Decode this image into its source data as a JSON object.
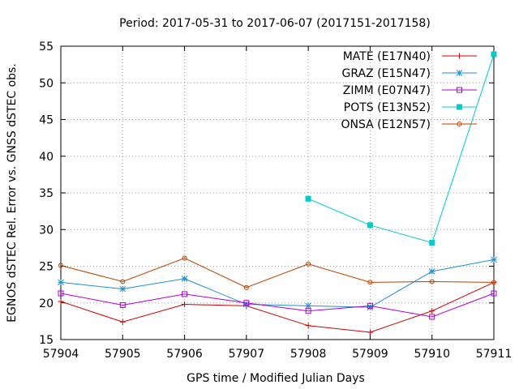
{
  "chart_data": {
    "type": "line",
    "title": "Period: 2017-05-31 to 2017-06-07 (2017151-2017158)",
    "xlabel": "GPS time / Modified Julian Days",
    "ylabel": "EGNOS dSTEC Rel. Error vs. GNSS dSTEC obs.",
    "xlim": [
      57904,
      57911
    ],
    "ylim": [
      15,
      55
    ],
    "xticks": [
      57904,
      57905,
      57906,
      57907,
      57908,
      57909,
      57910,
      57911
    ],
    "yticks": [
      15,
      20,
      25,
      30,
      35,
      40,
      45,
      50,
      55
    ],
    "grid": true,
    "legend_position": "top-right",
    "series": [
      {
        "name": "MATE (E17N40)",
        "color": "#cc0000",
        "marker": "plus",
        "x": [
          57904,
          57905,
          57906,
          57907,
          57908,
          57909,
          57910,
          57911
        ],
        "y": [
          20.2,
          17.4,
          19.8,
          19.6,
          16.9,
          16.0,
          18.9,
          22.8
        ]
      },
      {
        "name": "GRAZ (E15N47)",
        "color": "#1e8fd0",
        "marker": "star",
        "x": [
          57904,
          57905,
          57906,
          57907,
          57908,
          57909,
          57910,
          57911
        ],
        "y": [
          22.8,
          21.9,
          23.3,
          19.8,
          19.6,
          19.4,
          24.3,
          25.9
        ]
      },
      {
        "name": "ZIMM (E07N47)",
        "color": "#b000d0",
        "marker": "square-open",
        "x": [
          57904,
          57905,
          57906,
          57907,
          57908,
          57909,
          57910,
          57911
        ],
        "y": [
          21.3,
          19.7,
          21.2,
          20.0,
          18.9,
          19.6,
          18.1,
          21.3
        ]
      },
      {
        "name": "POTS (E13N52)",
        "color": "#00cccc",
        "marker": "square-filled",
        "x": [
          57908,
          57909,
          57910,
          57911
        ],
        "y": [
          34.2,
          30.6,
          28.2,
          53.9
        ]
      },
      {
        "name": "ONSA (E12N57)",
        "color": "#b84000",
        "marker": "circle-open",
        "x": [
          57904,
          57905,
          57906,
          57907,
          57908,
          57909,
          57910,
          57911
        ],
        "y": [
          25.1,
          22.9,
          26.1,
          22.1,
          25.3,
          22.8,
          22.9,
          22.8
        ]
      }
    ]
  }
}
